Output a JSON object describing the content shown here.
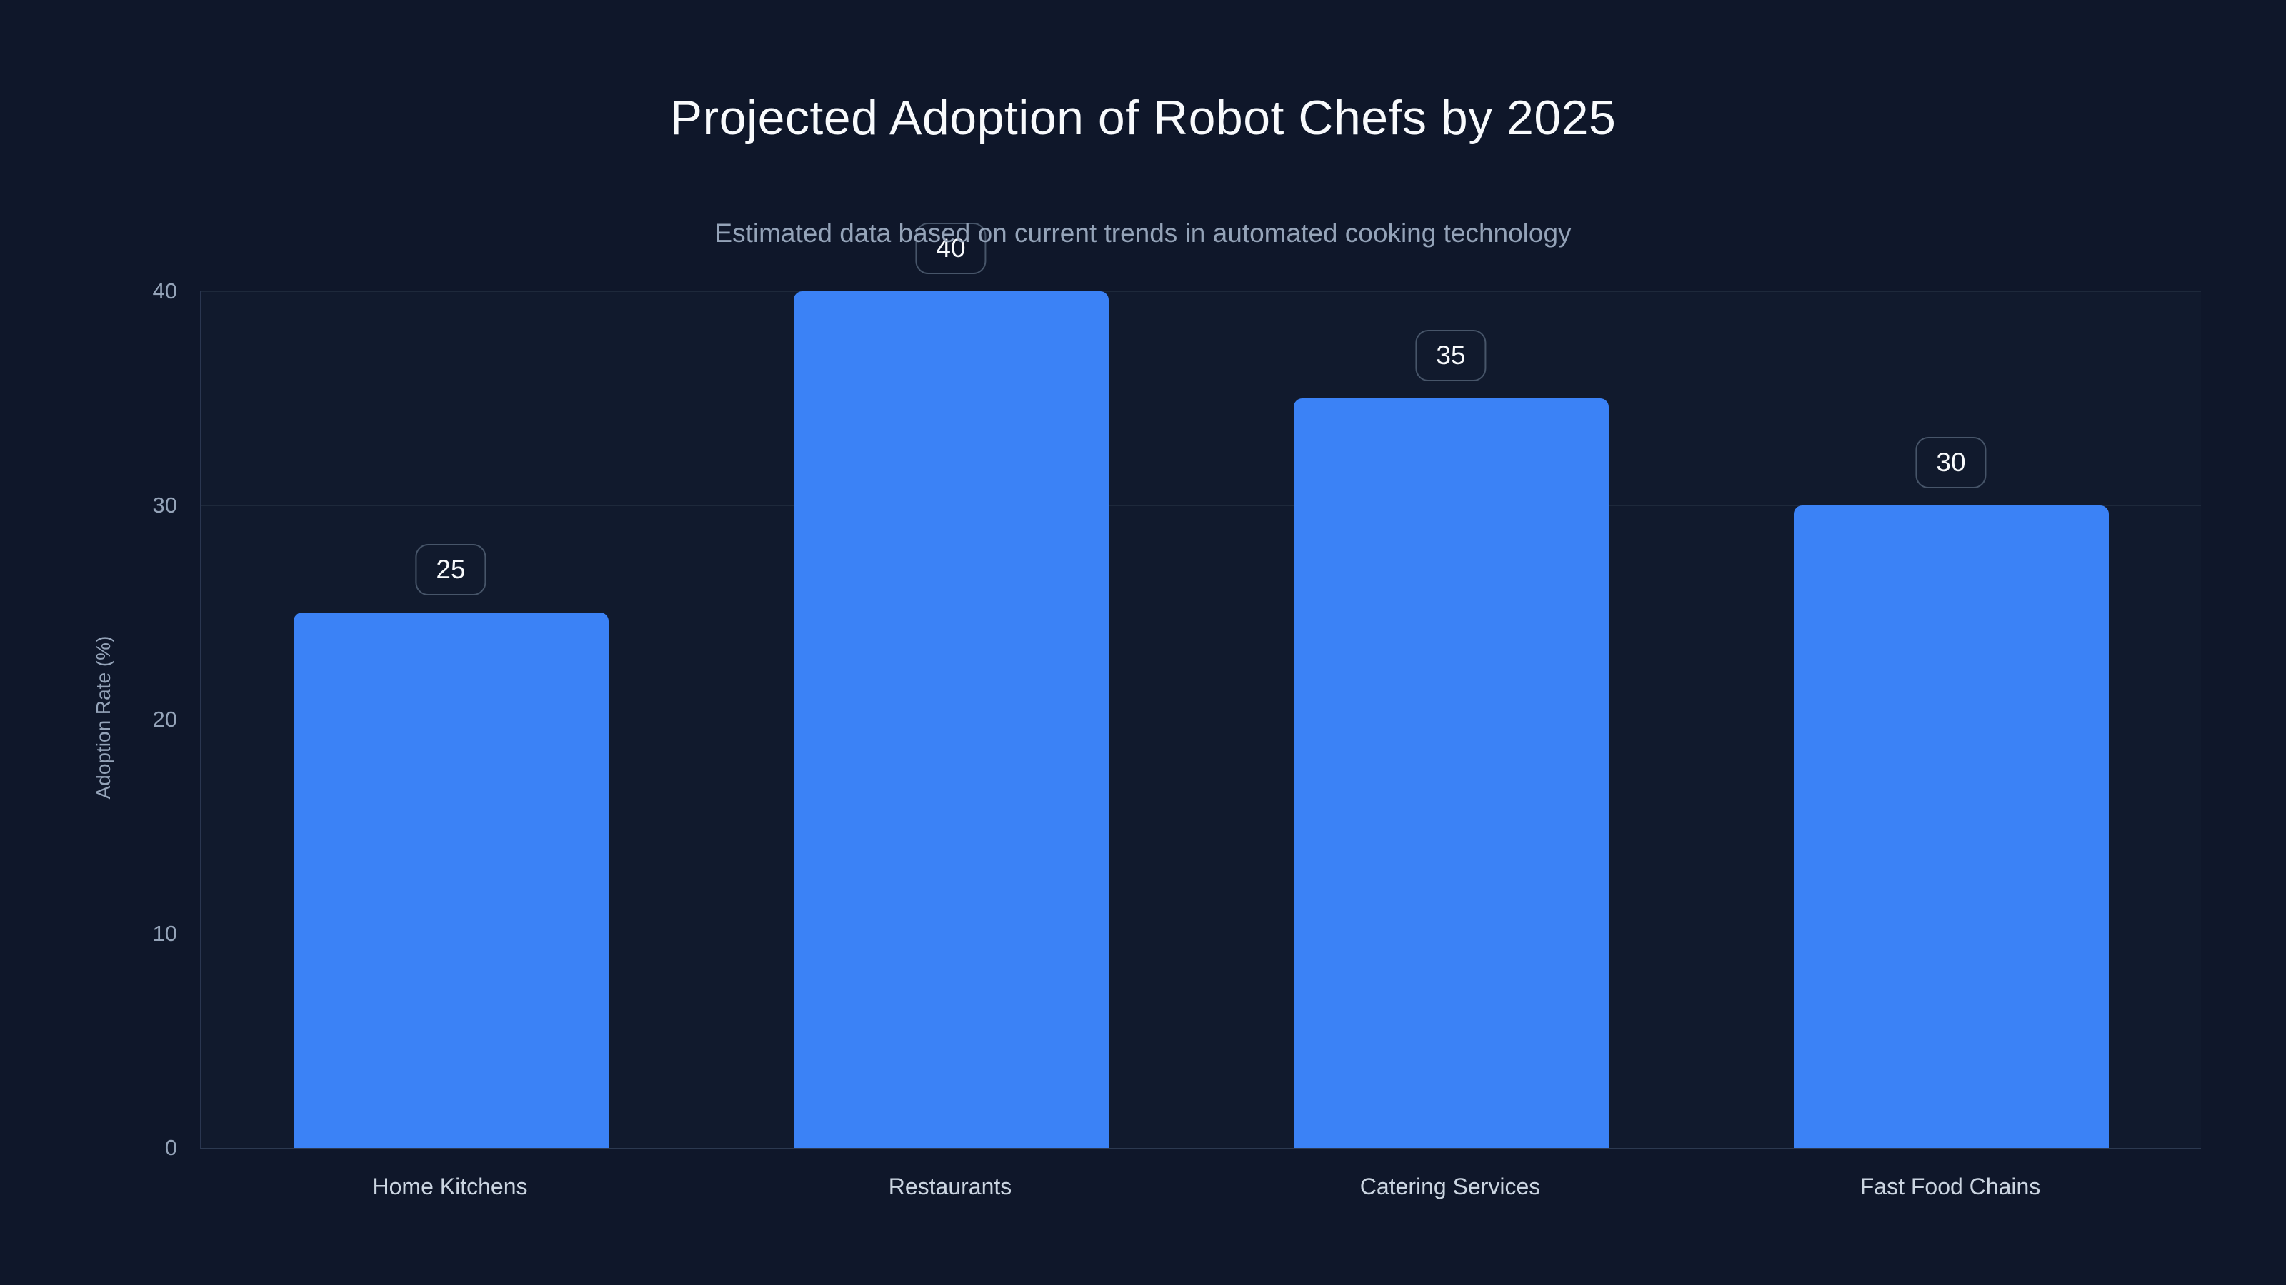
{
  "chart_data": {
    "type": "bar",
    "title": "Projected Adoption of Robot Chefs by 2025",
    "subtitle": "Estimated data based on current trends in automated cooking technology",
    "categories": [
      "Home Kitchens",
      "Restaurants",
      "Catering Services",
      "Fast Food Chains"
    ],
    "values": [
      25,
      40,
      35,
      30
    ],
    "value_labels": [
      "25",
      "40",
      "35",
      "30"
    ],
    "xlabel": "",
    "ylabel": "Adoption Rate (%)",
    "ylim": [
      0,
      40
    ],
    "yticks": [
      0,
      10,
      20,
      30,
      40
    ],
    "grid": "horizontal",
    "legend": "none",
    "bar_color": "#3b82f6"
  },
  "colors": {
    "background": "#0f172a",
    "bar": "#3b82f6",
    "title_text": "#f8fafc",
    "subtitle_text": "#94a3b8",
    "tick_text": "#94a3b8",
    "category_text": "#cbd5e1",
    "gridline": "#1e293b",
    "axis_line": "#2a3650",
    "badge_border": "#475569",
    "badge_text": "#f8fafc"
  }
}
